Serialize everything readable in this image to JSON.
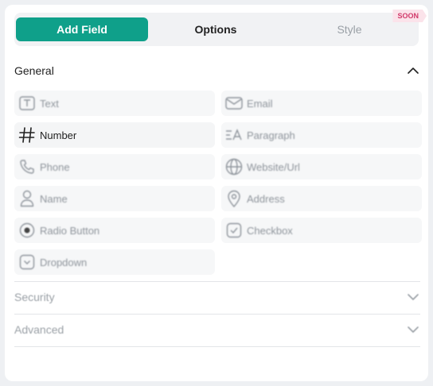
{
  "tabs": {
    "add_field": "Add Field",
    "options": "Options",
    "style": "Style",
    "soon_badge": "SOON"
  },
  "sections": {
    "general": "General",
    "security": "Security",
    "advanced": "Advanced"
  },
  "fields": [
    {
      "label": "Text",
      "icon": "text-box-icon"
    },
    {
      "label": "Email",
      "icon": "envelope-icon"
    },
    {
      "label": "Number",
      "icon": "hash-icon"
    },
    {
      "label": "Paragraph",
      "icon": "paragraph-icon"
    },
    {
      "label": "Phone",
      "icon": "phone-icon"
    },
    {
      "label": "Website/Url",
      "icon": "globe-icon"
    },
    {
      "label": "Name",
      "icon": "person-icon"
    },
    {
      "label": "Address",
      "icon": "location-pin-icon"
    },
    {
      "label": "Radio Button",
      "icon": "radio-icon"
    },
    {
      "label": "Checkbox",
      "icon": "checkbox-icon"
    },
    {
      "label": "Dropdown",
      "icon": "dropdown-icon"
    }
  ],
  "colors": {
    "accent": "#0fa08a",
    "soon_text": "#d13a6a",
    "soon_bg": "#fbe3ea"
  }
}
